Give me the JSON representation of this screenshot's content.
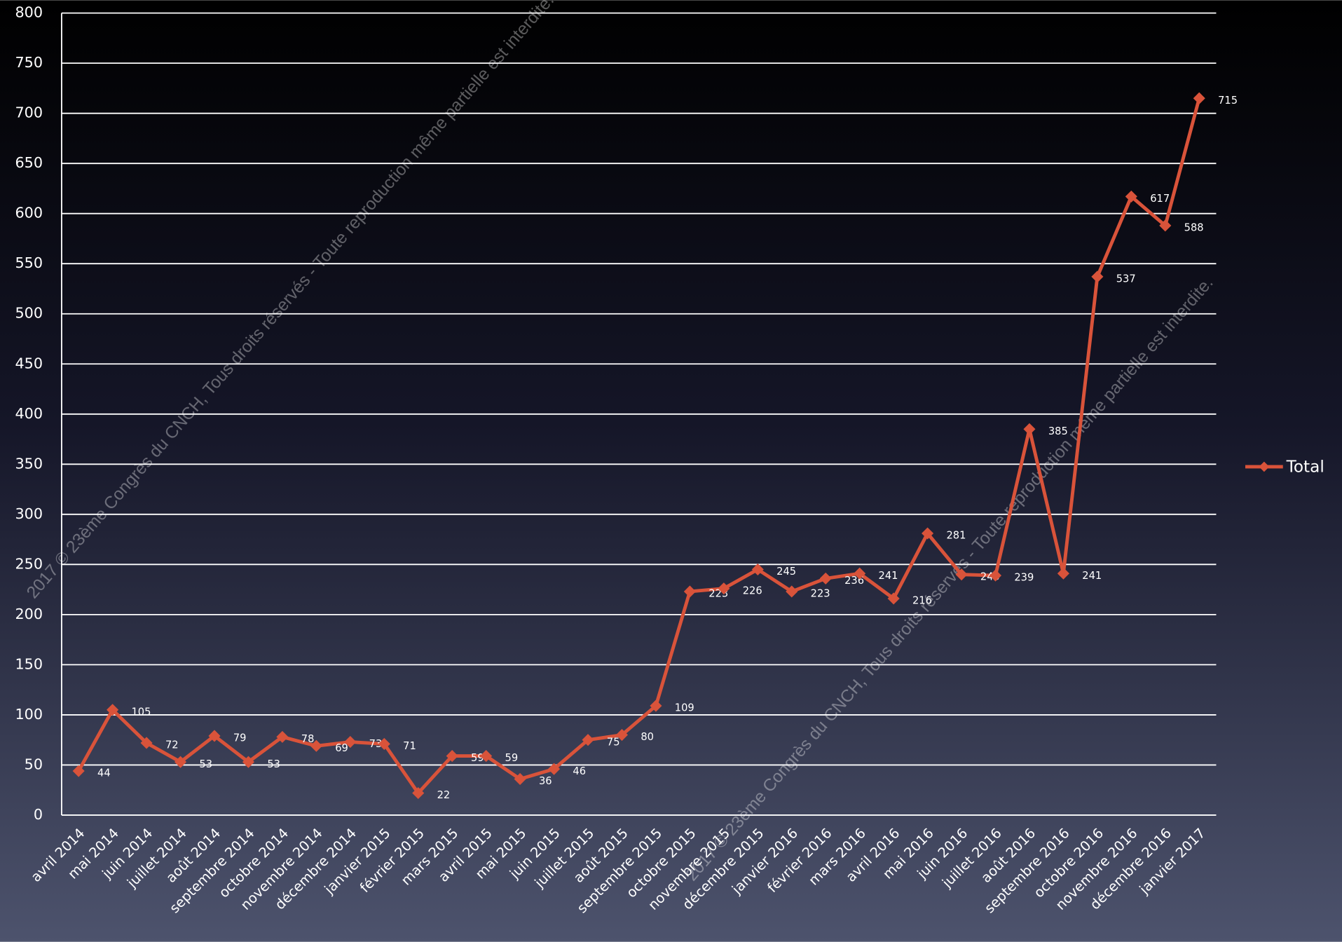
{
  "chart_data": {
    "type": "line",
    "categories": [
      "avril 2014",
      "mai 2014",
      "juin 2014",
      "juillet 2014",
      "août 2014",
      "septembre 2014",
      "octobre 2014",
      "novembre 2014",
      "décembre 2014",
      "janvier 2015",
      "février 2015",
      "mars 2015",
      "avril 2015",
      "mai 2015",
      "juin 2015",
      "juillet 2015",
      "août 2015",
      "septembre 2015",
      "octobre 2015",
      "novembre 2015",
      "décembre 2015",
      "janvier 2016",
      "février 2016",
      "mars 2016",
      "avril 2016",
      "mai 2016",
      "juin 2016",
      "juillet 2016",
      "août 2016",
      "septembre 2016",
      "octobre 2016",
      "novembre 2016",
      "décembre 2016",
      "janvier 2017"
    ],
    "series": [
      {
        "name": "Total",
        "color": "#d9533a",
        "values": [
          44,
          105,
          72,
          53,
          79,
          53,
          78,
          69,
          73,
          71,
          22,
          59,
          59,
          36,
          46,
          75,
          80,
          109,
          223,
          226,
          245,
          223,
          236,
          241,
          216,
          281,
          240,
          239,
          385,
          241,
          537,
          617,
          588,
          715
        ]
      }
    ],
    "ylim": [
      0,
      800
    ],
    "yticks": [
      0,
      50,
      100,
      150,
      200,
      250,
      300,
      350,
      400,
      450,
      500,
      550,
      600,
      650,
      700,
      750,
      800
    ],
    "grid": true,
    "legend": "right",
    "watermark": "2017 © 23ème Congrès du CNCH, Tous droits réservés - Toute reproduction même partielle est interdite."
  }
}
